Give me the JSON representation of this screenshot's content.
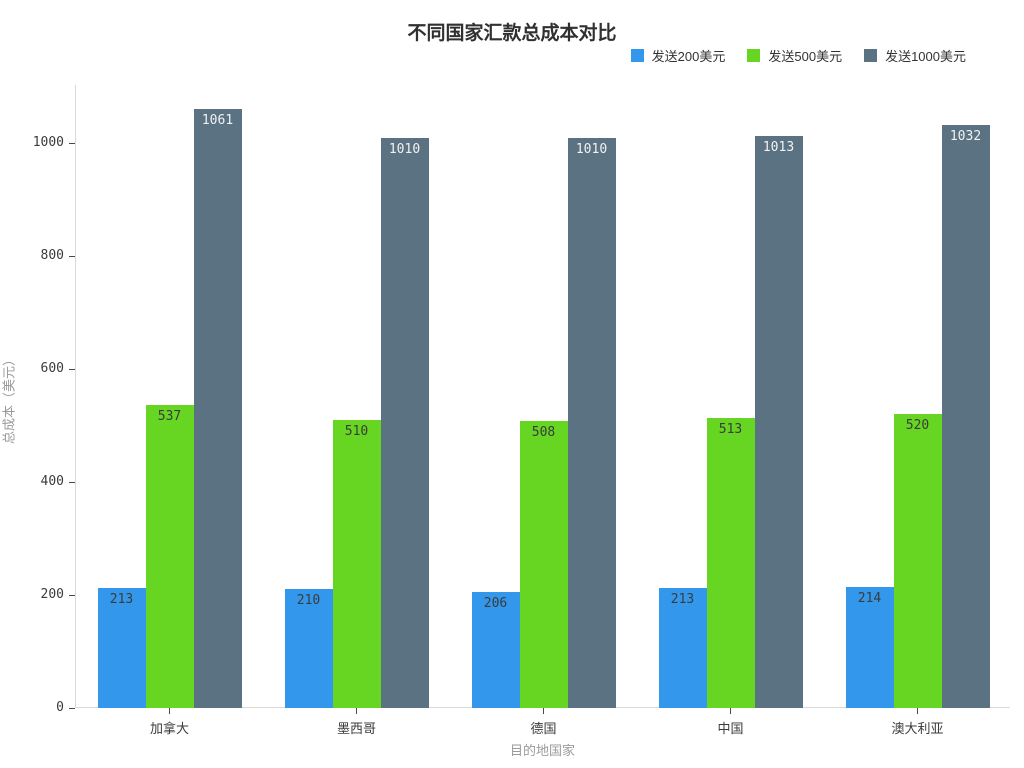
{
  "title": "不同国家汇款总成本对比",
  "chart_data": {
    "type": "bar",
    "title": "不同国家汇款总成本对比",
    "xlabel": "目的地国家",
    "ylabel": "总成本（美元）",
    "categories": [
      "加拿大",
      "墨西哥",
      "德国",
      "中国",
      "澳大利亚"
    ],
    "series": [
      {
        "name": "发送200美元",
        "color": "#3398ec",
        "value_label_color": "#3b3b3b",
        "values": [
          213,
          210,
          206,
          213,
          214
        ]
      },
      {
        "name": "发送500美元",
        "color": "#66d622",
        "value_label_color": "#3b3b3b",
        "values": [
          537,
          510,
          508,
          513,
          520
        ]
      },
      {
        "name": "发送1000美元",
        "color": "#5b7282",
        "value_label_color": "#f2f2f2",
        "values": [
          1061,
          1010,
          1010,
          1013,
          1032
        ]
      }
    ],
    "yticks": [
      0,
      200,
      400,
      600,
      800,
      1000
    ],
    "ylim": [
      0,
      1103
    ],
    "grid": false,
    "legend_position": "top-right",
    "axis_line_color": "#d9d9d9"
  }
}
